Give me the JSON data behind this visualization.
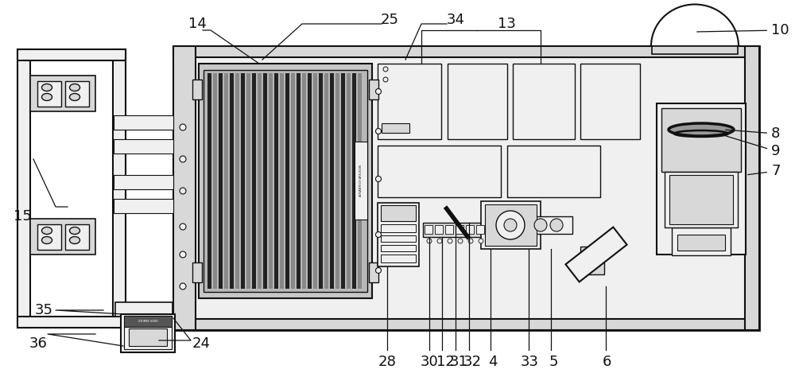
{
  "bg_color": "#ffffff",
  "lc": "#333333",
  "dc": "#111111",
  "fl": "#f0f0f0",
  "fm": "#d8d8d8",
  "fd": "#aaaaaa",
  "fdk": "#555555",
  "figsize": [
    10.0,
    4.74
  ],
  "dpi": 100,
  "label_fs": 12,
  "label_color": "#111111"
}
